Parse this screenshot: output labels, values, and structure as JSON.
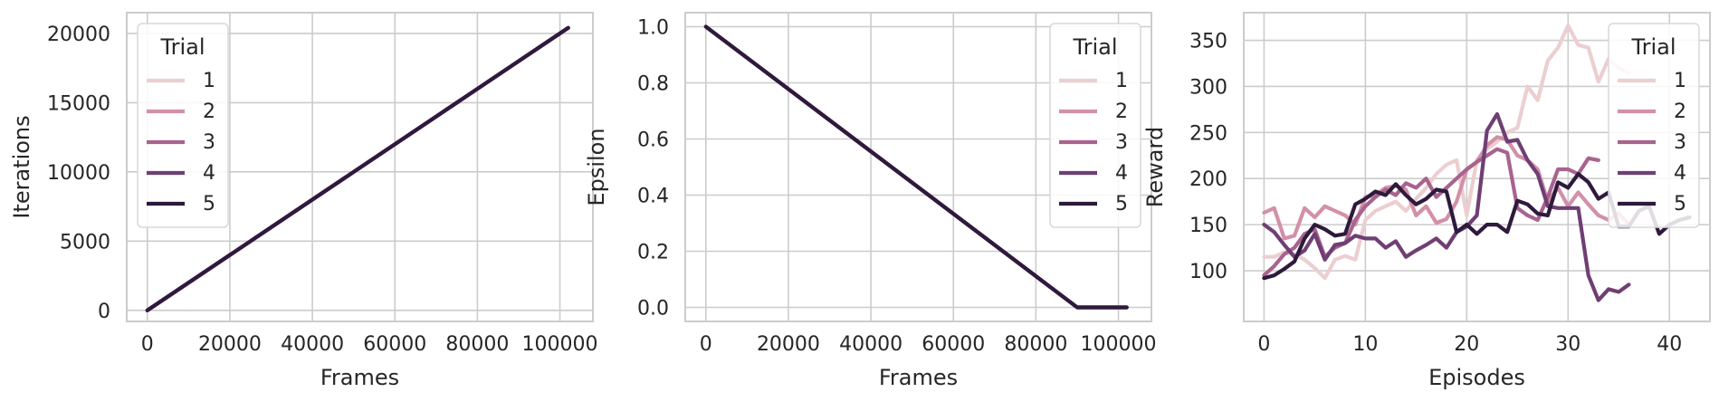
{
  "legend_title": "Trial",
  "palette": [
    "#ebcfd0",
    "#d390a8",
    "#a8638e",
    "#6f3f74",
    "#2e1a3c"
  ],
  "chart_data": [
    {
      "type": "line",
      "xlabel": "Frames",
      "ylabel": "Iterations",
      "xlim": [
        -5000,
        108000
      ],
      "ylim": [
        -800,
        21500
      ],
      "xticks": [
        0,
        20000,
        40000,
        60000,
        80000,
        100000
      ],
      "yticks": [
        0,
        5000,
        10000,
        15000,
        20000
      ],
      "grid": true,
      "legend_position": "top-left",
      "series": [
        {
          "name": "1",
          "x": [
            0,
            102000
          ],
          "y": [
            0,
            20400
          ]
        },
        {
          "name": "2",
          "x": [
            0,
            102000
          ],
          "y": [
            0,
            20400
          ]
        },
        {
          "name": "3",
          "x": [
            0,
            102000
          ],
          "y": [
            0,
            20400
          ]
        },
        {
          "name": "4",
          "x": [
            0,
            102000
          ],
          "y": [
            0,
            20400
          ]
        },
        {
          "name": "5",
          "x": [
            0,
            102000
          ],
          "y": [
            0,
            20400
          ]
        }
      ]
    },
    {
      "type": "line",
      "xlabel": "Frames",
      "ylabel": "Epsilon",
      "xlim": [
        -5000,
        108000
      ],
      "ylim": [
        -0.05,
        1.05
      ],
      "xticks": [
        0,
        20000,
        40000,
        60000,
        80000,
        100000
      ],
      "yticks": [
        0.0,
        0.2,
        0.4,
        0.6,
        0.8,
        1.0
      ],
      "ytick_labels": [
        "0.0",
        "0.2",
        "0.4",
        "0.6",
        "0.8",
        "1.0"
      ],
      "grid": true,
      "legend_position": "top-right",
      "series": [
        {
          "name": "1",
          "x": [
            0,
            90000,
            102000
          ],
          "y": [
            1.0,
            0.0,
            0.0
          ]
        },
        {
          "name": "2",
          "x": [
            0,
            90000,
            102000
          ],
          "y": [
            1.0,
            0.0,
            0.0
          ]
        },
        {
          "name": "3",
          "x": [
            0,
            90000,
            102000
          ],
          "y": [
            1.0,
            0.0,
            0.0
          ]
        },
        {
          "name": "4",
          "x": [
            0,
            90000,
            102000
          ],
          "y": [
            1.0,
            0.0,
            0.0
          ]
        },
        {
          "name": "5",
          "x": [
            0,
            90000,
            102000
          ],
          "y": [
            1.0,
            0.0,
            0.0
          ]
        }
      ]
    },
    {
      "type": "line",
      "xlabel": "Episodes",
      "ylabel": "Reward",
      "xlim": [
        -2,
        44
      ],
      "ylim": [
        45,
        380
      ],
      "xticks": [
        0,
        10,
        20,
        30,
        40
      ],
      "yticks": [
        100,
        150,
        200,
        250,
        300,
        350
      ],
      "grid": true,
      "legend_position": "top-right",
      "series": [
        {
          "name": "1",
          "x": [
            0,
            1,
            2,
            3,
            4,
            5,
            6,
            7,
            8,
            9,
            10,
            11,
            12,
            13,
            14,
            15,
            16,
            17,
            18,
            19,
            20,
            21,
            22,
            23,
            24,
            25,
            26,
            27,
            28,
            29,
            30,
            31,
            32,
            33,
            34,
            35,
            36
          ],
          "y": [
            115,
            115,
            120,
            118,
            112,
            103,
            92,
            112,
            116,
            112,
            155,
            165,
            170,
            175,
            165,
            178,
            190,
            205,
            215,
            220,
            160,
            220,
            232,
            240,
            250,
            255,
            300,
            285,
            328,
            342,
            366,
            345,
            342,
            305,
            330,
            320,
            315
          ]
        },
        {
          "name": "2",
          "x": [
            0,
            1,
            2,
            3,
            4,
            5,
            6,
            7,
            8,
            9,
            10,
            11,
            12,
            13,
            14,
            15,
            16,
            17,
            18,
            19,
            20,
            21,
            22,
            23,
            24,
            25,
            26,
            27,
            28,
            29,
            30,
            31,
            32,
            33,
            34,
            35,
            36
          ],
          "y": [
            163,
            168,
            135,
            138,
            168,
            158,
            170,
            165,
            160,
            150,
            180,
            182,
            190,
            192,
            188,
            160,
            170,
            152,
            156,
            175,
            210,
            218,
            236,
            245,
            242,
            225,
            220,
            210,
            175,
            190,
            170,
            185,
            172,
            160,
            155,
            162,
            150
          ]
        },
        {
          "name": "3",
          "x": [
            0,
            1,
            2,
            3,
            4,
            5,
            6,
            7,
            8,
            9,
            10,
            11,
            12,
            13,
            14,
            15,
            16,
            17,
            18,
            19,
            20,
            21,
            22,
            23,
            24,
            25,
            26,
            27,
            28,
            29,
            30,
            31,
            32,
            33
          ],
          "y": [
            95,
            105,
            118,
            125,
            140,
            145,
            115,
            125,
            130,
            155,
            170,
            180,
            188,
            182,
            195,
            190,
            200,
            180,
            190,
            200,
            210,
            218,
            225,
            232,
            228,
            168,
            160,
            155,
            180,
            210,
            210,
            205,
            222,
            220
          ]
        },
        {
          "name": "4",
          "x": [
            0,
            1,
            2,
            3,
            4,
            5,
            6,
            7,
            8,
            9,
            10,
            11,
            12,
            13,
            14,
            15,
            16,
            17,
            18,
            19,
            20,
            21,
            22,
            23,
            24,
            25,
            26,
            27,
            28,
            29,
            30,
            31,
            32,
            33,
            34,
            35,
            36
          ],
          "y": [
            150,
            142,
            128,
            115,
            122,
            140,
            112,
            128,
            130,
            138,
            135,
            135,
            125,
            132,
            115,
            122,
            128,
            135,
            125,
            142,
            148,
            160,
            252,
            270,
            240,
            242,
            220,
            205,
            170,
            168,
            168,
            168,
            95,
            68,
            80,
            77,
            85
          ]
        },
        {
          "name": "5",
          "x": [
            0,
            1,
            2,
            3,
            4,
            5,
            6,
            7,
            8,
            9,
            10,
            11,
            12,
            13,
            14,
            15,
            16,
            17,
            18,
            19,
            20,
            21,
            22,
            23,
            24,
            25,
            26,
            27,
            28,
            29,
            30,
            31,
            32,
            33,
            34,
            35,
            36,
            37,
            38,
            39,
            40,
            41,
            42
          ],
          "y": [
            92,
            95,
            102,
            110,
            135,
            150,
            145,
            138,
            140,
            172,
            178,
            186,
            182,
            194,
            182,
            172,
            178,
            188,
            186,
            142,
            150,
            140,
            150,
            150,
            142,
            176,
            172,
            162,
            160,
            196,
            190,
            205,
            196,
            178,
            185,
            148,
            148,
            165,
            170,
            140,
            150,
            155,
            158
          ]
        }
      ]
    }
  ]
}
